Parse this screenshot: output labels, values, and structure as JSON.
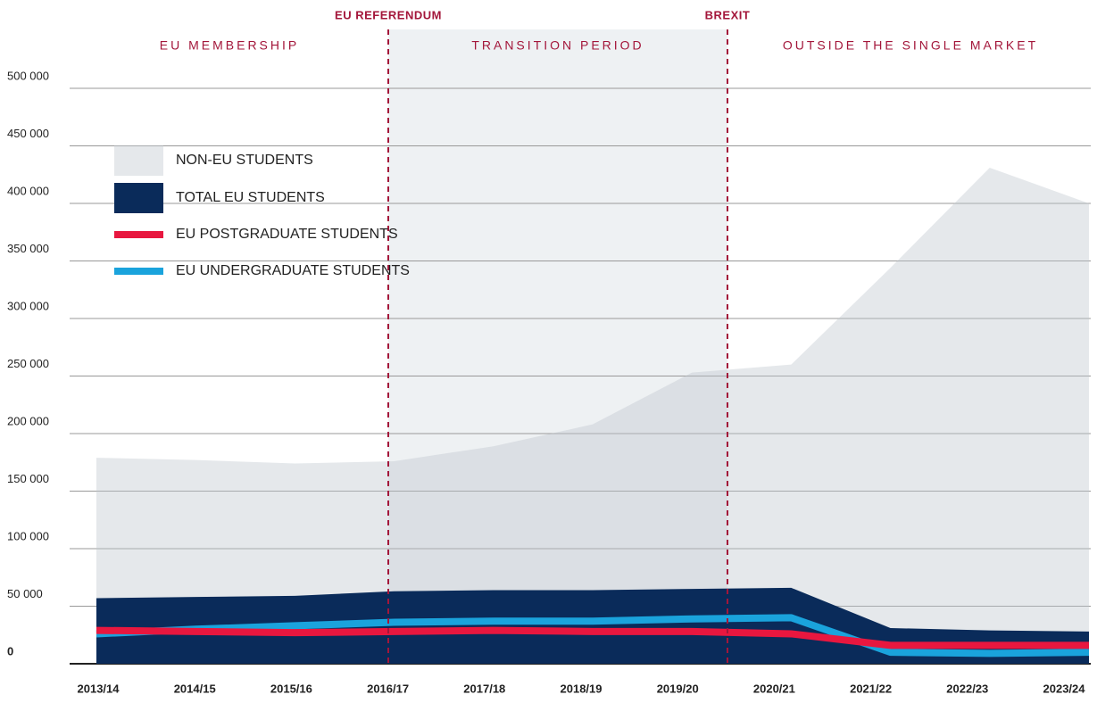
{
  "chart_data": {
    "type": "area",
    "categories": [
      "2013/14",
      "2014/15",
      "2015/16",
      "2016/17",
      "2017/18",
      "2018/19",
      "2019/20",
      "2020/21",
      "2021/22",
      "2022/23",
      "2023/24"
    ],
    "series": [
      {
        "name": "NON-EU STUDENTS",
        "color": "#bec6cd",
        "values": [
          179000,
          177000,
          174000,
          176000,
          189000,
          208000,
          253000,
          260000,
          344000,
          431000,
          400000
        ]
      },
      {
        "name": "TOTAL EU STUDENTS",
        "color": "#0a2b5a",
        "values": [
          57000,
          58000,
          59000,
          63000,
          64000,
          64000,
          65000,
          66000,
          31000,
          29000,
          28000
        ]
      },
      {
        "name": "EU POSTGRADUATE STUDENTS",
        "color": "#e8173f",
        "values": [
          29000,
          28000,
          27000,
          28000,
          29000,
          28000,
          28000,
          26000,
          16000,
          16000,
          16000
        ]
      },
      {
        "name": "EU UNDERGRADUATE STUDENTS",
        "color": "#1aa3dc",
        "values": [
          26000,
          30000,
          33000,
          36000,
          37000,
          37000,
          39000,
          40000,
          10000,
          9000,
          10000
        ]
      }
    ],
    "ylim": [
      0,
      500000
    ],
    "yticks": [
      0,
      {
        "value": 50000,
        "label": "50 000"
      },
      {
        "value": 100000,
        "label": "100 000"
      },
      {
        "value": 150000,
        "label": "150 000"
      },
      {
        "value": 200000,
        "label": "200 000"
      },
      {
        "value": 250000,
        "label": "250 000"
      },
      {
        "value": 300000,
        "label": "300 000"
      },
      {
        "value": 350000,
        "label": "350 000"
      },
      {
        "value": 400000,
        "label": "400 000"
      },
      {
        "value": 450000,
        "label": "450 000"
      },
      {
        "value": 500000,
        "label": "500 000"
      }
    ],
    "grid": true,
    "events": [
      "EU REFERENDUM",
      "BREXIT"
    ],
    "phases": [
      "EU MEMBERSHIP",
      "TRANSITION PERIOD",
      "OUTSIDE THE SINGLE MARKET"
    ]
  }
}
